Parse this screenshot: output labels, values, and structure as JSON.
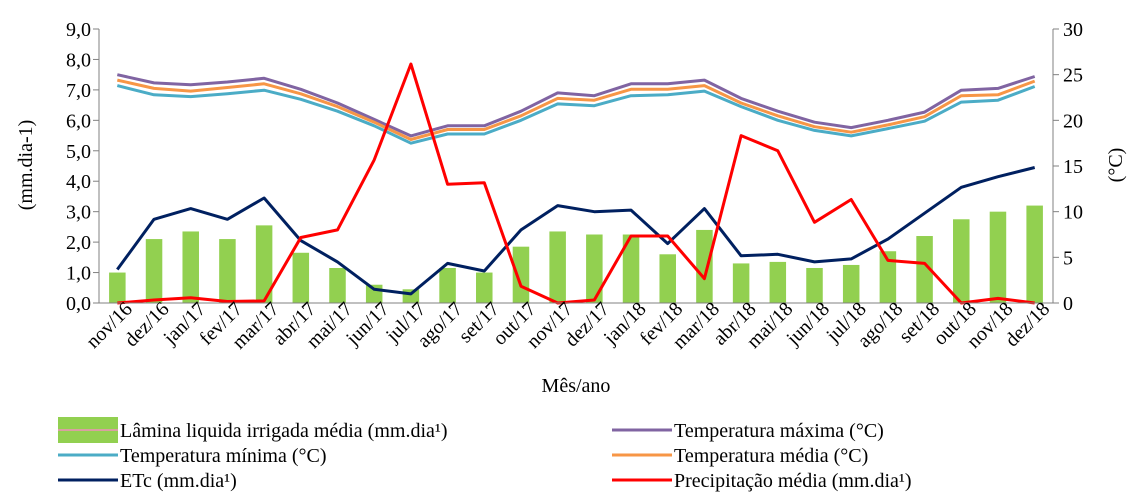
{
  "chart_data": {
    "type": "bar",
    "categories": [
      "nov/16",
      "dez/16",
      "jan/17",
      "fev/17",
      "mar/17",
      "abr/17",
      "mai/17",
      "jun/17",
      "jul/17",
      "ago/17",
      "set/17",
      "out/17",
      "nov/17",
      "dez/17",
      "jan/18",
      "fev/18",
      "mar/18",
      "abr/18",
      "mai/18",
      "jun/18",
      "jul/18",
      "ago/18",
      "set/18",
      "out/18",
      "nov/18",
      "dez/18"
    ],
    "xlabel": "Mês/ano",
    "ylabel_left": "(mm.dia-1)",
    "ylabel_right": "(°C)",
    "ylim_left": [
      0,
      9
    ],
    "ylim_right": [
      0,
      30
    ],
    "yticks_left": [
      "0,0",
      "1,0",
      "2,0",
      "3,0",
      "4,0",
      "5,0",
      "6,0",
      "7,0",
      "8,0",
      "9,0"
    ],
    "yticks_right": [
      "0",
      "5",
      "10",
      "15",
      "20",
      "25",
      "30"
    ],
    "grid": false,
    "legend_position": "bottom",
    "series": [
      {
        "name": "Lâmina liquida irrigada média (mm.dia¹)",
        "kind": "bar",
        "axis": "left",
        "color": "#92d050",
        "values": [
          1.0,
          2.1,
          2.35,
          2.1,
          2.55,
          1.65,
          1.15,
          0.6,
          0.45,
          1.15,
          1.0,
          1.85,
          2.35,
          2.25,
          2.25,
          1.6,
          2.4,
          1.3,
          1.35,
          1.15,
          1.25,
          1.7,
          2.2,
          2.75,
          3.0,
          3.2
        ]
      },
      {
        "name": "Temperatura máxima (°C)",
        "kind": "line",
        "axis": "right",
        "color": "#8064a2",
        "values": [
          25.0,
          24.1,
          23.9,
          24.2,
          24.6,
          23.4,
          21.9,
          20.1,
          18.3,
          19.4,
          19.4,
          21.0,
          23.0,
          22.7,
          24.0,
          24.0,
          24.4,
          22.4,
          21.0,
          19.8,
          19.2,
          20.0,
          20.9,
          23.3,
          23.5,
          24.8
        ]
      },
      {
        "name": "Temperatura mínima (°C)",
        "kind": "line",
        "axis": "right",
        "color": "#4bacc6",
        "values": [
          23.8,
          22.8,
          22.6,
          22.9,
          23.3,
          22.3,
          21.0,
          19.4,
          17.5,
          18.5,
          18.5,
          20.0,
          21.8,
          21.6,
          22.7,
          22.8,
          23.2,
          21.5,
          20.0,
          18.9,
          18.3,
          19.1,
          19.9,
          22.0,
          22.2,
          23.7
        ]
      },
      {
        "name": "Temperatura média (°C)",
        "kind": "line",
        "axis": "right",
        "color": "#f79646",
        "values": [
          24.4,
          23.5,
          23.2,
          23.6,
          24.0,
          22.9,
          21.5,
          19.8,
          17.9,
          19.0,
          19.0,
          20.5,
          22.4,
          22.2,
          23.4,
          23.4,
          23.8,
          21.9,
          20.5,
          19.3,
          18.7,
          19.5,
          20.4,
          22.7,
          22.8,
          24.3
        ]
      },
      {
        "name": "ETc (mm.dia¹)",
        "kind": "line",
        "axis": "left",
        "color": "#002060",
        "values": [
          1.1,
          2.75,
          3.1,
          2.75,
          3.45,
          2.05,
          1.35,
          0.45,
          0.3,
          1.3,
          1.05,
          2.4,
          3.2,
          3.0,
          3.05,
          1.95,
          3.1,
          1.55,
          1.6,
          1.35,
          1.45,
          2.1,
          2.95,
          3.8,
          4.15,
          4.45
        ]
      },
      {
        "name": "Precipitação média (mm.dia¹)",
        "kind": "line",
        "axis": "left",
        "color": "#ff0000",
        "values": [
          0.0,
          0.1,
          0.17,
          0.05,
          0.07,
          2.15,
          2.4,
          4.7,
          7.85,
          3.9,
          3.95,
          0.55,
          0.0,
          0.1,
          2.2,
          2.2,
          0.8,
          5.5,
          5.0,
          2.65,
          3.4,
          1.4,
          1.3,
          0.0,
          0.15,
          0.0
        ]
      }
    ]
  }
}
